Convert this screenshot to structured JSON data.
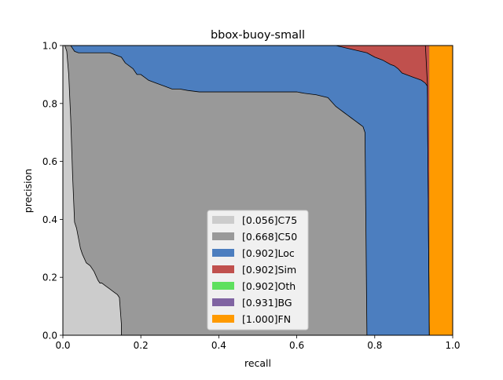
{
  "chart_data": {
    "type": "area",
    "title": "bbox-buoy-small",
    "xlabel": "recall",
    "ylabel": "precision",
    "xlim": [
      0,
      1
    ],
    "ylim": [
      0,
      1
    ],
    "xticks": [
      "0.0",
      "0.2",
      "0.4",
      "0.6",
      "0.8",
      "1.0"
    ],
    "yticks": [
      "0.0",
      "0.2",
      "0.4",
      "0.6",
      "0.8",
      "1.0"
    ],
    "grid": false,
    "legend_position": "lower-center",
    "series": [
      {
        "name": "[0.056]C75",
        "color": "#cccccc",
        "x": [
          0.0,
          0.005,
          0.01,
          0.015,
          0.02,
          0.025,
          0.03,
          0.035,
          0.045,
          0.05,
          0.06,
          0.07,
          0.08,
          0.09,
          0.095,
          0.1,
          0.11,
          0.12,
          0.13,
          0.14,
          0.145,
          0.15,
          0.15
        ],
        "y": [
          1.0,
          1.0,
          0.98,
          0.9,
          0.75,
          0.55,
          0.39,
          0.37,
          0.3,
          0.28,
          0.25,
          0.24,
          0.22,
          0.19,
          0.18,
          0.18,
          0.17,
          0.16,
          0.15,
          0.14,
          0.13,
          0.04,
          0.0
        ]
      },
      {
        "name": "[0.668]C50",
        "color": "#999999",
        "x": [
          0.0,
          0.02,
          0.03,
          0.04,
          0.12,
          0.15,
          0.16,
          0.18,
          0.19,
          0.2,
          0.21,
          0.22,
          0.24,
          0.26,
          0.28,
          0.3,
          0.32,
          0.35,
          0.4,
          0.45,
          0.5,
          0.55,
          0.6,
          0.62,
          0.65,
          0.68,
          0.7,
          0.71,
          0.72,
          0.73,
          0.74,
          0.75,
          0.76,
          0.77,
          0.775,
          0.78
        ],
        "y": [
          1.0,
          1.0,
          0.98,
          0.975,
          0.975,
          0.96,
          0.94,
          0.92,
          0.9,
          0.9,
          0.89,
          0.88,
          0.87,
          0.86,
          0.85,
          0.85,
          0.845,
          0.84,
          0.84,
          0.84,
          0.84,
          0.84,
          0.84,
          0.835,
          0.83,
          0.82,
          0.79,
          0.78,
          0.77,
          0.76,
          0.75,
          0.74,
          0.73,
          0.72,
          0.7,
          0.0
        ]
      },
      {
        "name": "[0.902]Loc",
        "color": "#4c7ebf",
        "x": [
          0.0,
          0.7,
          0.78,
          0.8,
          0.82,
          0.84,
          0.85,
          0.86,
          0.87,
          0.88,
          0.89,
          0.9,
          0.91,
          0.92,
          0.93,
          0.935,
          0.94
        ],
        "y": [
          1.0,
          1.0,
          0.975,
          0.96,
          0.95,
          0.935,
          0.93,
          0.92,
          0.905,
          0.9,
          0.895,
          0.89,
          0.885,
          0.88,
          0.87,
          0.86,
          0.0
        ]
      },
      {
        "name": "[0.902]Sim",
        "color": "#c0504d",
        "x": [
          0.0,
          0.94
        ],
        "y": [
          1.0,
          1.0
        ]
      },
      {
        "name": "[0.902]Oth",
        "color": "#5ee05e",
        "x": [
          0.0,
          0.94
        ],
        "y": [
          1.0,
          1.0
        ]
      },
      {
        "name": "[0.931]BG",
        "color": "#8064a2",
        "x": [
          0.0,
          0.93,
          0.935,
          0.94
        ],
        "y": [
          1.0,
          1.0,
          0.87,
          0.0
        ]
      },
      {
        "name": "[1.000]FN",
        "color": "#ff9a00",
        "x": [
          0.0,
          1.0
        ],
        "y": [
          1.0,
          1.0
        ]
      }
    ],
    "boundaries": [
      {
        "name": "C75",
        "x": [
          0.0,
          0.005,
          0.01,
          0.015,
          0.02,
          0.025,
          0.03,
          0.035,
          0.045,
          0.05,
          0.06,
          0.07,
          0.08,
          0.09,
          0.095,
          0.1,
          0.11,
          0.12,
          0.13,
          0.14,
          0.145,
          0.15,
          0.15
        ],
        "y": [
          1.0,
          1.0,
          0.98,
          0.9,
          0.75,
          0.55,
          0.39,
          0.37,
          0.3,
          0.28,
          0.25,
          0.24,
          0.22,
          0.19,
          0.18,
          0.18,
          0.17,
          0.16,
          0.15,
          0.14,
          0.13,
          0.04,
          0.0
        ]
      },
      {
        "name": "C50",
        "x": [
          0.0,
          0.02,
          0.03,
          0.04,
          0.12,
          0.15,
          0.16,
          0.18,
          0.19,
          0.2,
          0.21,
          0.22,
          0.24,
          0.26,
          0.28,
          0.3,
          0.32,
          0.35,
          0.4,
          0.45,
          0.5,
          0.55,
          0.6,
          0.62,
          0.65,
          0.68,
          0.7,
          0.71,
          0.72,
          0.73,
          0.74,
          0.75,
          0.76,
          0.77,
          0.775,
          0.78
        ],
        "y": [
          1.0,
          1.0,
          0.98,
          0.975,
          0.975,
          0.96,
          0.94,
          0.92,
          0.9,
          0.9,
          0.89,
          0.88,
          0.87,
          0.86,
          0.85,
          0.85,
          0.845,
          0.84,
          0.84,
          0.84,
          0.84,
          0.84,
          0.84,
          0.835,
          0.83,
          0.82,
          0.79,
          0.78,
          0.77,
          0.76,
          0.75,
          0.74,
          0.73,
          0.72,
          0.7,
          0.0
        ]
      },
      {
        "name": "Loc",
        "x": [
          0.0,
          0.7,
          0.78,
          0.8,
          0.82,
          0.84,
          0.85,
          0.86,
          0.87,
          0.88,
          0.89,
          0.9,
          0.91,
          0.92,
          0.93,
          0.935,
          0.94
        ],
        "y": [
          1.0,
          1.0,
          0.975,
          0.96,
          0.95,
          0.935,
          0.93,
          0.92,
          0.905,
          0.9,
          0.895,
          0.89,
          0.885,
          0.88,
          0.87,
          0.86,
          0.0
        ]
      },
      {
        "name": "BG",
        "x": [
          0.0,
          0.93,
          0.935,
          0.94
        ],
        "y": [
          1.0,
          1.0,
          0.87,
          0.0
        ]
      }
    ]
  }
}
